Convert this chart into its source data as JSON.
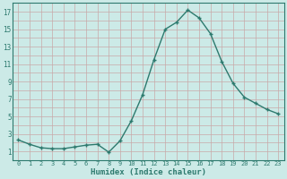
{
  "x": [
    0,
    1,
    2,
    3,
    4,
    5,
    6,
    7,
    8,
    9,
    10,
    11,
    12,
    13,
    14,
    15,
    16,
    17,
    18,
    19,
    20,
    21,
    22,
    23
  ],
  "y": [
    2.3,
    1.8,
    1.4,
    1.3,
    1.3,
    1.5,
    1.7,
    1.8,
    0.9,
    2.2,
    4.5,
    7.5,
    11.5,
    15.0,
    15.8,
    17.2,
    16.3,
    14.5,
    11.3,
    8.8,
    7.2,
    6.5,
    5.8,
    5.3
  ],
  "xlabel": "Humidex (Indice chaleur)",
  "bg_color": "#cceae7",
  "line_color": "#2d7a6e",
  "grid_color": "#c8a8a8",
  "xlim": [
    -0.5,
    23.5
  ],
  "ylim": [
    0.0,
    18.0
  ],
  "yticks": [
    1,
    3,
    5,
    7,
    9,
    11,
    13,
    15,
    17
  ],
  "xticks": [
    0,
    1,
    2,
    3,
    4,
    5,
    6,
    7,
    8,
    9,
    10,
    11,
    12,
    13,
    14,
    15,
    16,
    17,
    18,
    19,
    20,
    21,
    22,
    23
  ],
  "all_ygrid": [
    0,
    1,
    2,
    3,
    4,
    5,
    6,
    7,
    8,
    9,
    10,
    11,
    12,
    13,
    14,
    15,
    16,
    17,
    18
  ]
}
